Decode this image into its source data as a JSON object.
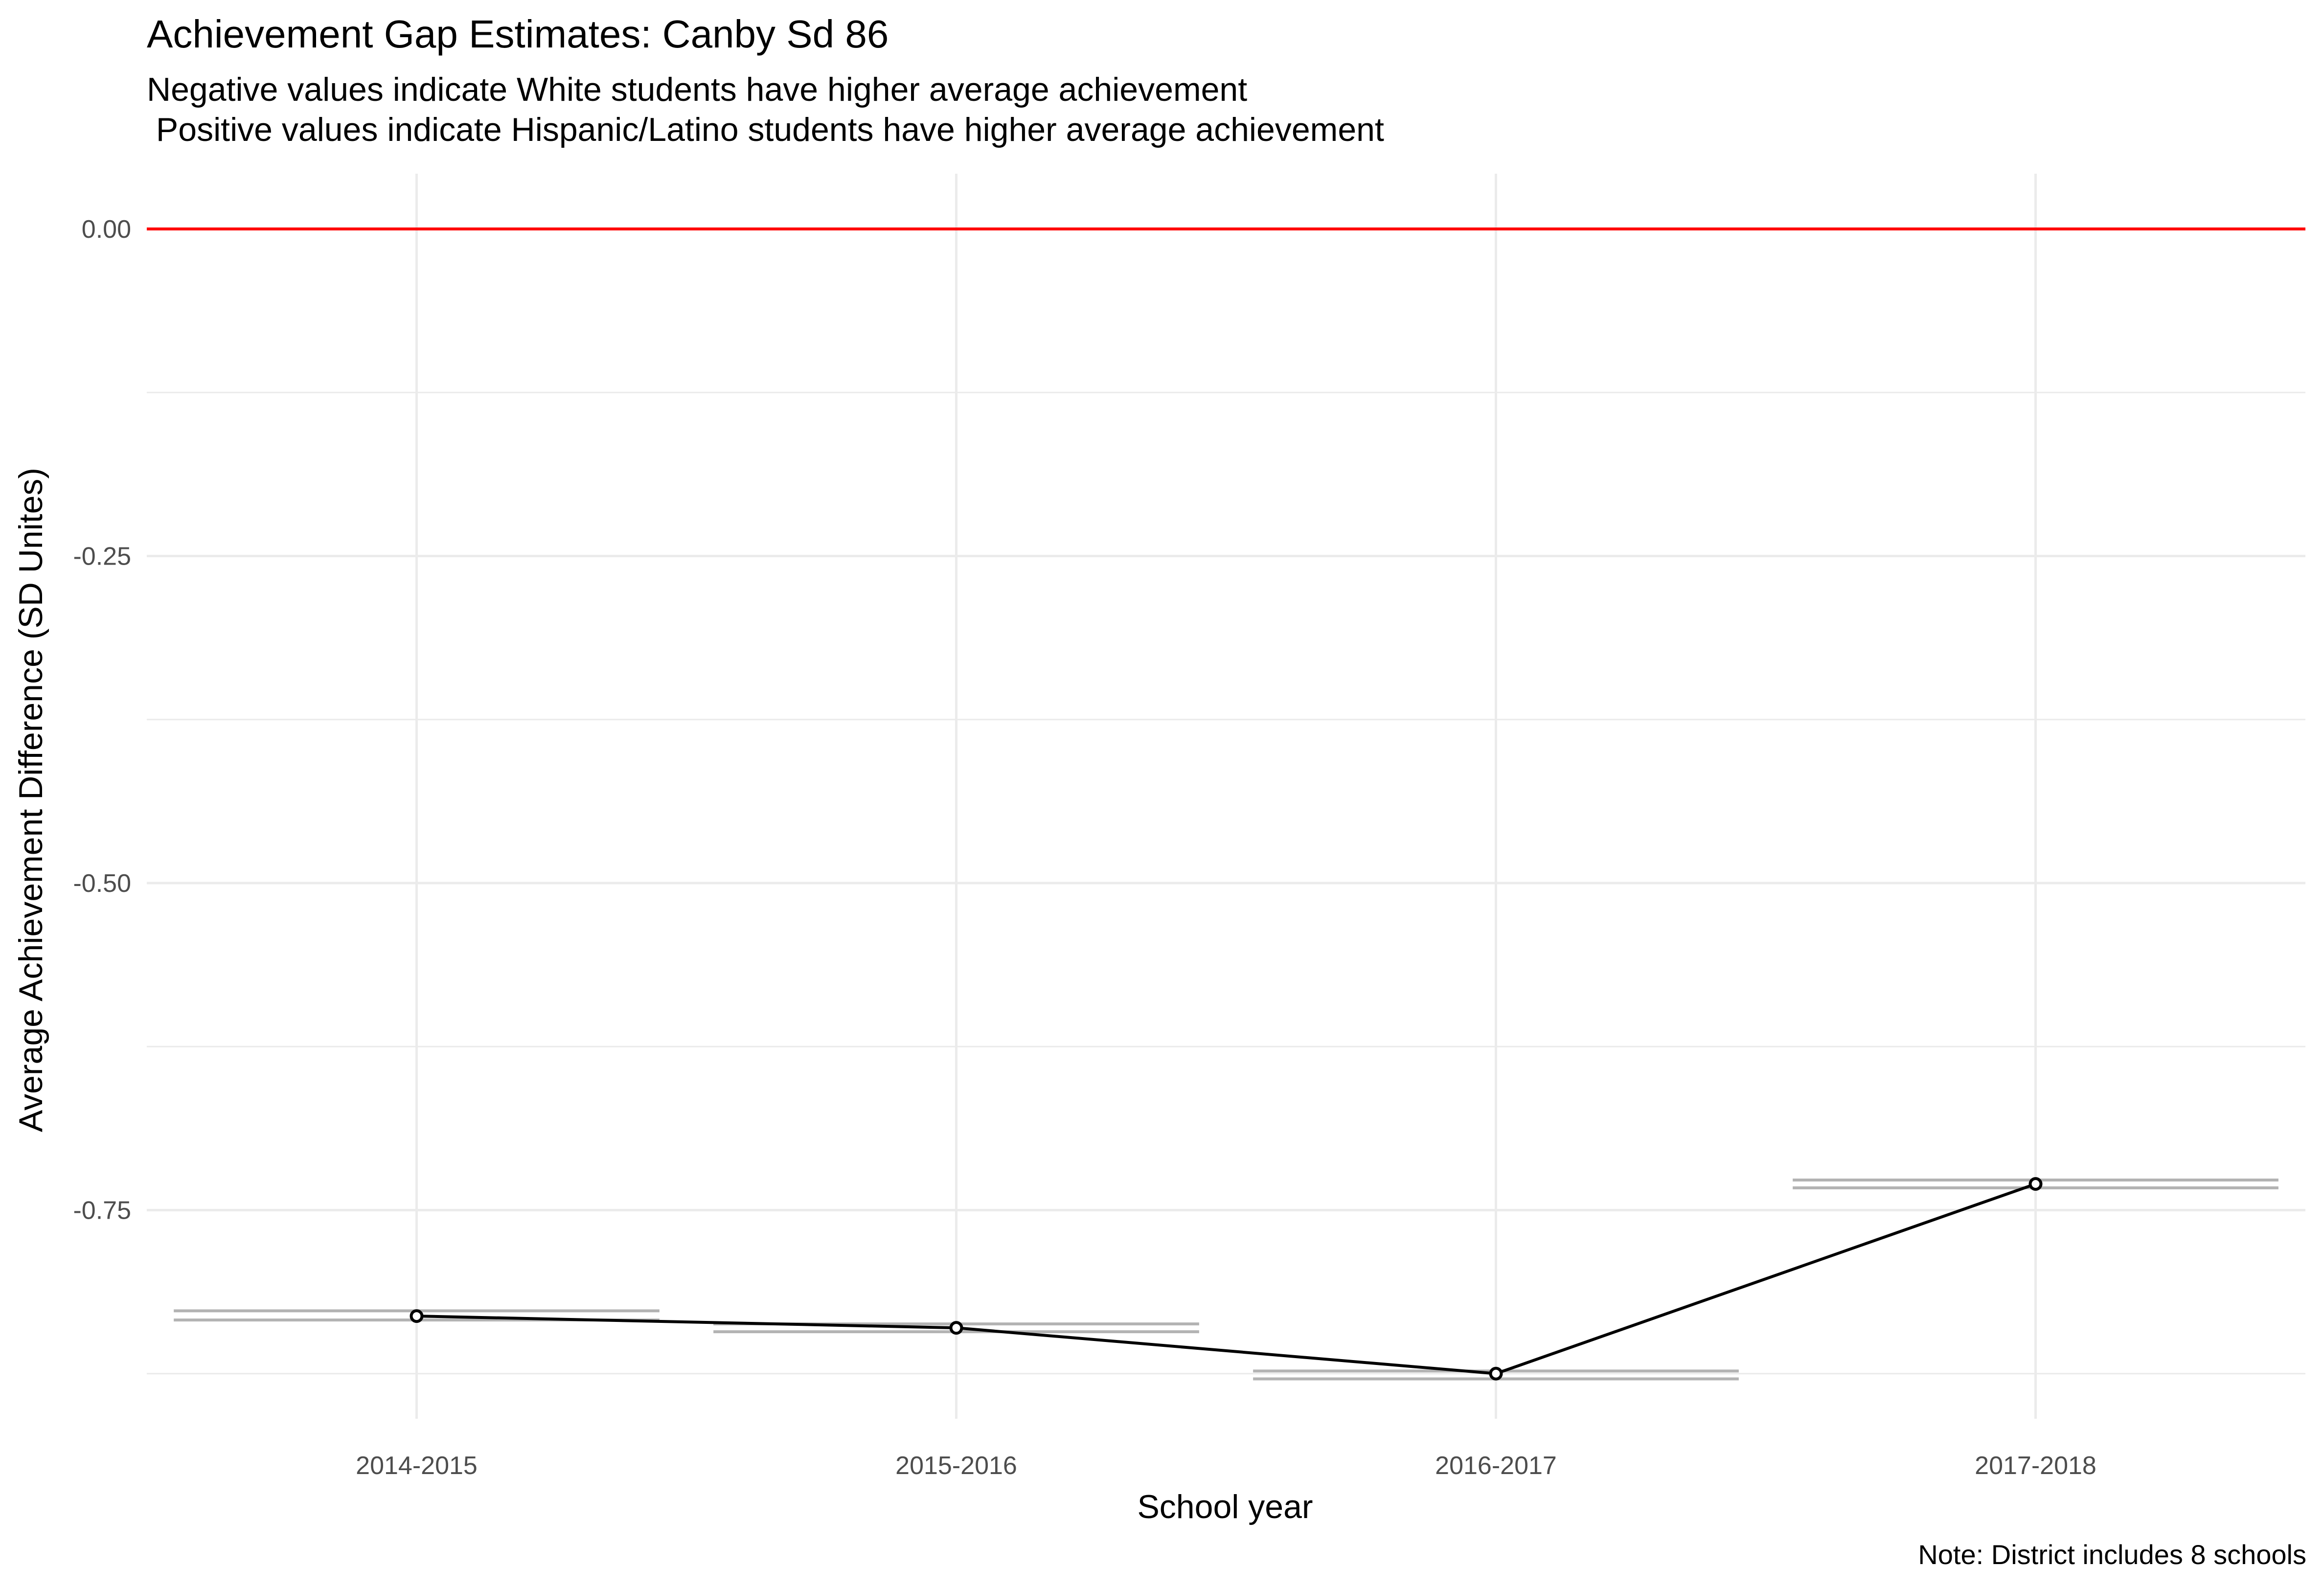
{
  "chart_data": {
    "type": "line",
    "title": "Achievement Gap Estimates: Canby Sd 86",
    "subtitle_lines": [
      "Negative values indicate White students have higher average achievement",
      " Positive values indicate Hispanic/Latino students have higher average achievement"
    ],
    "xlabel": "School year",
    "ylabel": "Average Achievement Difference (SD Unites)",
    "caption": "Note: District includes 8 schools",
    "categories": [
      "2014-2015",
      "2015-2016",
      "2016-2017",
      "2017-2018"
    ],
    "series": [
      {
        "values": [
          -0.831,
          -0.84,
          -0.875,
          -0.73
        ]
      }
    ],
    "interval_bands": [
      {
        "upper": -0.827,
        "lower": -0.834
      },
      {
        "upper": -0.837,
        "lower": -0.843
      },
      {
        "upper": -0.873,
        "lower": -0.879
      },
      {
        "upper": -0.727,
        "lower": -0.733
      }
    ],
    "reference_line": {
      "y": 0,
      "color": "#ff0000"
    },
    "ylim": [
      -0.9,
      0.04
    ],
    "yticks": [
      0,
      -0.25,
      -0.5,
      -0.75
    ],
    "ytick_labels": [
      "0.00",
      "-0.25",
      "-0.50",
      "-0.75"
    ],
    "grid": true,
    "colors": {
      "line": "#000000",
      "band": "#b3b3b3",
      "grid": "#ebebeb",
      "reference": "#ff0000"
    }
  }
}
